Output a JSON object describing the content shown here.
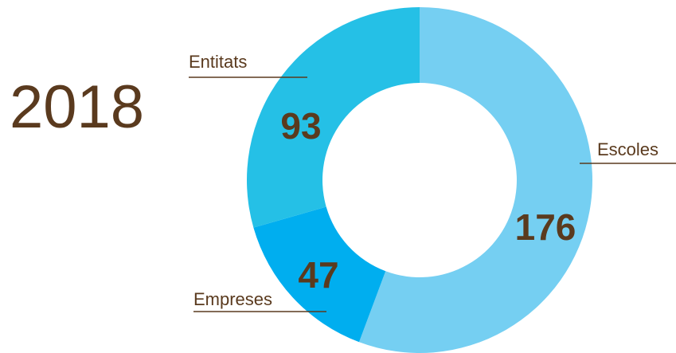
{
  "chart_data": {
    "type": "donut",
    "title": "2018",
    "categories": [
      "Escoles",
      "Empreses",
      "Entitats"
    ],
    "values": [
      176,
      47,
      93
    ],
    "colors": [
      "#75cff2",
      "#00aeef",
      "#25c0e6"
    ]
  }
}
